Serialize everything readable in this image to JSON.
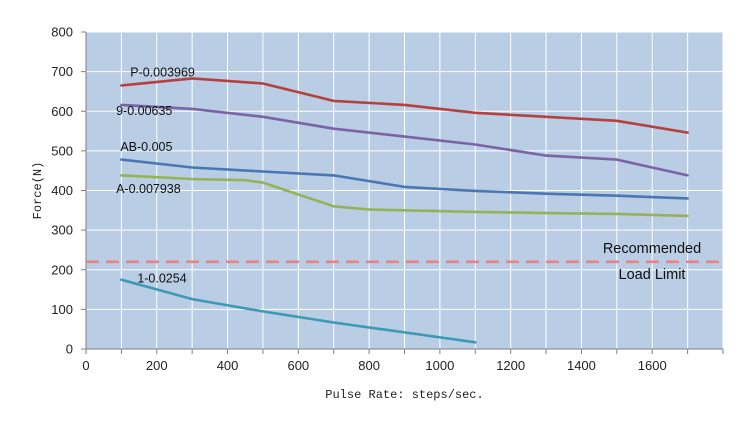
{
  "chart_data": {
    "type": "line",
    "xlabel": "Pulse Rate: steps/sec.",
    "ylabel": "Force(N)",
    "xlim": [
      0,
      1800
    ],
    "ylim": [
      0,
      800
    ],
    "x_ticks": [
      0,
      200,
      400,
      600,
      800,
      1000,
      1200,
      1400,
      1600
    ],
    "y_ticks": [
      0,
      100,
      200,
      300,
      400,
      500,
      600,
      700,
      800
    ],
    "grid": true,
    "plot_background": "#b9cde5",
    "gridline_color": "#ffffff",
    "series": [
      {
        "name": "P-0.003969",
        "color": "#b5413f",
        "points": [
          [
            100,
            665
          ],
          [
            300,
            683
          ],
          [
            500,
            670
          ],
          [
            700,
            626
          ],
          [
            900,
            616
          ],
          [
            1100,
            596
          ],
          [
            1300,
            586
          ],
          [
            1500,
            576
          ],
          [
            1700,
            546
          ]
        ]
      },
      {
        "name": "9-0.00635",
        "color": "#7b64a6",
        "points": [
          [
            100,
            616
          ],
          [
            300,
            606
          ],
          [
            500,
            586
          ],
          [
            700,
            556
          ],
          [
            900,
            536
          ],
          [
            1100,
            516
          ],
          [
            1300,
            488
          ],
          [
            1500,
            478
          ],
          [
            1700,
            438
          ]
        ]
      },
      {
        "name": "AB-0.005",
        "color": "#4a77b4",
        "points": [
          [
            100,
            478
          ],
          [
            300,
            458
          ],
          [
            500,
            448
          ],
          [
            700,
            438
          ],
          [
            900,
            409
          ],
          [
            1100,
            399
          ],
          [
            1300,
            392
          ],
          [
            1500,
            387
          ],
          [
            1700,
            380
          ]
        ]
      },
      {
        "name": "A-0.007938",
        "color": "#94b356",
        "points": [
          [
            100,
            438
          ],
          [
            300,
            429
          ],
          [
            450,
            426
          ],
          [
            500,
            420
          ],
          [
            600,
            390
          ],
          [
            700,
            360
          ],
          [
            800,
            352
          ],
          [
            900,
            350
          ],
          [
            1100,
            346
          ],
          [
            1300,
            343
          ],
          [
            1500,
            341
          ],
          [
            1700,
            336
          ]
        ]
      },
      {
        "name": "1-0.0254",
        "color": "#3d9ab5",
        "points": [
          [
            100,
            175
          ],
          [
            300,
            126
          ],
          [
            500,
            95
          ],
          [
            700,
            67
          ],
          [
            900,
            42
          ],
          [
            1100,
            17
          ]
        ]
      }
    ],
    "reference_line": {
      "value": 220,
      "color": "#f08080",
      "label_line1": "Recommended",
      "label_line2": "Load Limit"
    },
    "series_label_positions": {
      "P-0.003969": [
        125,
        688
      ],
      "9-0.00635": [
        85,
        591
      ],
      "AB-0.005": [
        97,
        500
      ],
      "A-0.007938": [
        85,
        394
      ],
      "1-0.0254": [
        145,
        168
      ]
    }
  }
}
